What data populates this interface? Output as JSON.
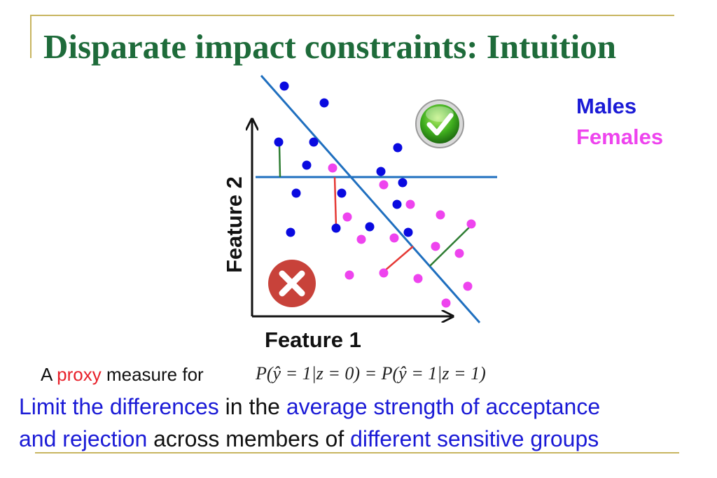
{
  "title": "Disparate impact constraints: Intuition",
  "legend": {
    "males": "Males",
    "females": "Females"
  },
  "axes": {
    "xlabel": "Feature 1",
    "ylabel": "Feature 2"
  },
  "colors": {
    "males": "#0a0ae0",
    "females": "#ee44ee",
    "boundary": "#1f6fbf",
    "title": "#1e6b3a",
    "accept_line": "#2e7d32",
    "reject_line": "#e53935"
  },
  "icons": {
    "accept": "check-icon",
    "reject": "cross-icon"
  },
  "caption": {
    "prefix": "A",
    "highlight": "proxy",
    "suffix": "measure for",
    "formula": "P(ŷ = 1|z = 0) = P(ŷ = 1|z = 1)"
  },
  "summary": {
    "line1": {
      "p1": "Limit the differences",
      "p2": " in the ",
      "p3": "average strength of acceptance"
    },
    "line2": {
      "p1": "and rejection",
      "p2": " across members of ",
      "p3": "different sensitive groups"
    }
  }
}
